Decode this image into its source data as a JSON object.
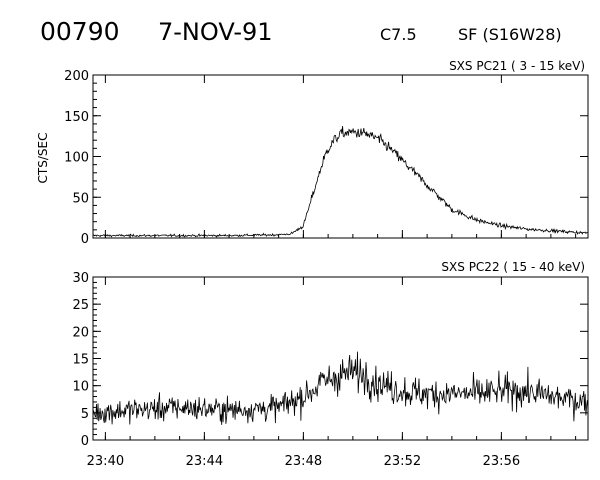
{
  "header": {
    "event_id": "00790",
    "date": "7-NOV-91",
    "goes_class": "C7.5",
    "optical_class": "SF (S16W28)"
  },
  "chart_data": [
    {
      "type": "line",
      "title": "SXS PC21  (  3 - 15 keV)",
      "ylabel": "CTS/SEC",
      "xlabel": "",
      "xlim": [
        "23:39:30",
        "23:59:30"
      ],
      "ylim": [
        0,
        200
      ],
      "yticks": [
        0,
        50,
        100,
        150,
        200
      ],
      "xticks": [
        "23:40",
        "23:44",
        "23:48",
        "23:52",
        "23:56"
      ],
      "grid": false,
      "series": [
        {
          "x": [
            "23:39:30",
            "23:41:00",
            "23:43:00",
            "23:45:00",
            "23:47:00",
            "23:47:30",
            "23:48:00",
            "23:48:15",
            "23:48:30",
            "23:48:45",
            "23:49:00",
            "23:49:15",
            "23:49:30",
            "23:50:00",
            "23:50:30",
            "23:51:00",
            "23:51:30",
            "23:52:00",
            "23:52:30",
            "23:53:00",
            "23:53:30",
            "23:54:00",
            "23:55:00",
            "23:56:00",
            "23:57:00",
            "23:58:00",
            "23:59:00",
            "23:59:30"
          ],
          "values": [
            3,
            3,
            3,
            3,
            4,
            5,
            15,
            40,
            65,
            90,
            110,
            120,
            128,
            130,
            128,
            122,
            110,
            95,
            80,
            65,
            50,
            35,
            22,
            15,
            11,
            9,
            7,
            6
          ]
        }
      ]
    },
    {
      "type": "line",
      "title": "SXS PC22  ( 15 - 40 keV)",
      "ylabel": "",
      "xlabel": "",
      "xlim": [
        "23:39:30",
        "23:59:30"
      ],
      "ylim": [
        0,
        30
      ],
      "yticks": [
        0,
        5,
        10,
        15,
        20,
        25,
        30
      ],
      "xticks": [
        "23:40",
        "23:44",
        "23:48",
        "23:52",
        "23:56"
      ],
      "grid": false,
      "series": [
        {
          "x": [
            "23:39:30",
            "23:41:00",
            "23:43:00",
            "23:45:00",
            "23:47:00",
            "23:48:00",
            "23:48:45",
            "23:49:30",
            "23:50:00",
            "23:50:30",
            "23:51:00",
            "23:52:00",
            "23:53:00",
            "23:54:00",
            "23:55:00",
            "23:56:00",
            "23:57:00",
            "23:58:00",
            "23:59:30"
          ],
          "values": [
            5,
            5.5,
            6,
            5.5,
            6,
            8,
            10.5,
            12,
            12.5,
            12,
            10.5,
            9,
            8.5,
            8.5,
            8.5,
            9,
            9,
            8,
            7
          ]
        }
      ]
    }
  ]
}
